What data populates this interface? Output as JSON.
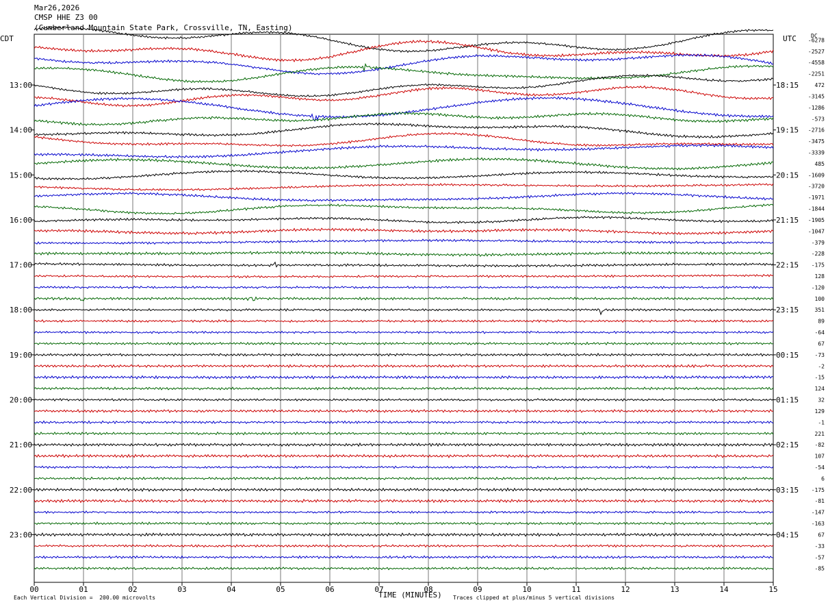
{
  "header": {
    "date": "Mar26,2026",
    "station": "CMSP HHE Z3 00",
    "location": "(Cumberland Mountain State Park, Crossville, TN, Easting)"
  },
  "left_zone": "CDT",
  "right_zone": "UTC",
  "dc_label": "DC",
  "footer": {
    "scale_note": "Each Vertical Division =  200.00 microvolts",
    "xlabel": "TIME (MINUTES)",
    "clip_note": "Traces clipped at plus/minus 5 vertical divisions"
  },
  "chart_data": {
    "type": "line",
    "xlabel": "TIME (MINUTES)",
    "xlim": [
      0,
      15
    ],
    "x_ticks": [
      "00",
      "01",
      "02",
      "03",
      "04",
      "05",
      "06",
      "07",
      "08",
      "09",
      "10",
      "11",
      "12",
      "13",
      "14",
      "15"
    ],
    "trace_minutes": 15,
    "traces_count": 48,
    "trace_colors": [
      "#000000",
      "#cc0000",
      "#0000cc",
      "#006600"
    ],
    "left_time_labels": [
      "13:00",
      "14:00",
      "15:00",
      "16:00",
      "17:00",
      "18:00",
      "19:00",
      "20:00",
      "21:00",
      "22:00",
      "23:00"
    ],
    "right_time_labels": [
      "18:15",
      "19:15",
      "20:15",
      "21:15",
      "22:15",
      "23:15",
      "00:15",
      "01:15",
      "02:15",
      "03:15",
      "04:15"
    ],
    "dc_offsets": [
      "-6278",
      "-2527",
      "-4558",
      "-2251",
      "472",
      "-3145",
      "-1286",
      "-573",
      "-2716",
      "-3475",
      "-3339",
      "485",
      "-1609",
      "-3720",
      "-1971",
      "-1844",
      "-1905",
      "-1047",
      "-379",
      "-228",
      "-175",
      "128",
      "-120",
      "100",
      "351",
      "89",
      "-64",
      "67",
      "-73",
      "-2",
      "-15",
      "124",
      "32",
      "129",
      "-1",
      "221",
      "-82",
      "107",
      "-54",
      "6",
      "-175",
      "-81",
      "-147",
      "-163",
      "67",
      "-33",
      "-57",
      "-85"
    ],
    "events": [
      {
        "trace": 3,
        "minute": 6.7
      },
      {
        "trace": 6,
        "minute": 5.7
      },
      {
        "trace": 20,
        "minute": 4.85
      },
      {
        "trace": 23,
        "minute": 1.0
      },
      {
        "trace": 23,
        "minute": 4.4
      },
      {
        "trace": 24,
        "minute": 11.5
      }
    ]
  }
}
